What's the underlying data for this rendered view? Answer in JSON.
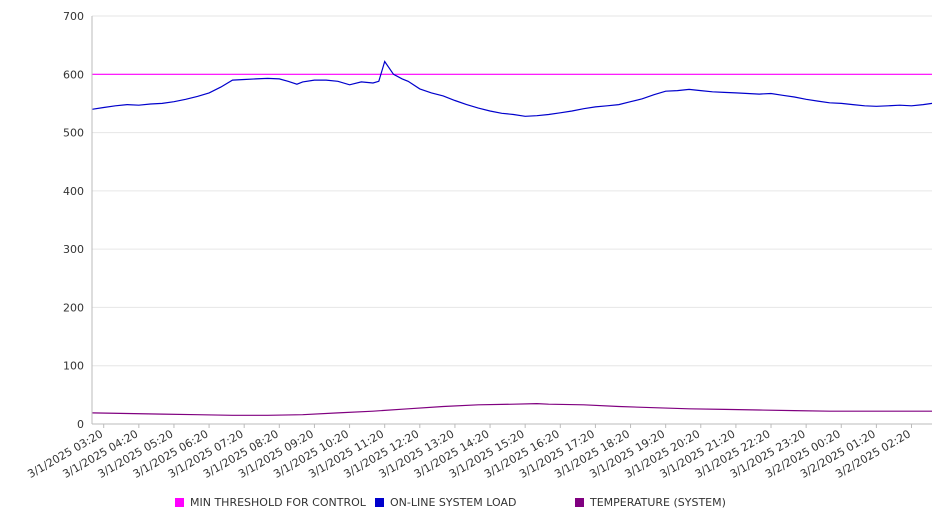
{
  "chart_data": {
    "type": "line",
    "title": "",
    "xlabel": "",
    "ylabel": "",
    "ylim": [
      0,
      700
    ],
    "yticks": [
      0,
      100,
      200,
      300,
      400,
      500,
      600,
      700
    ],
    "grid": true,
    "legend_position": "bottom",
    "x_start": "3/1/2025 03:00",
    "x_end": "3/2/2025 02:55",
    "x_tick_labels": [
      "3/1/2025 03:20",
      "3/1/2025 04:20",
      "3/1/2025 05:20",
      "3/1/2025 06:20",
      "3/1/2025 07:20",
      "3/1/2025 08:20",
      "3/1/2025 09:20",
      "3/1/2025 10:20",
      "3/1/2025 11:20",
      "3/1/2025 12:20",
      "3/1/2025 13:20",
      "3/1/2025 14:20",
      "3/1/2025 15:20",
      "3/1/2025 16:20",
      "3/1/2025 17:20",
      "3/1/2025 18:20",
      "3/1/2025 19:20",
      "3/1/2025 20:20",
      "3/1/2025 21:20",
      "3/1/2025 22:20",
      "3/1/2025 23:20",
      "3/2/2025 00:20",
      "3/2/2025 01:20",
      "3/2/2025 02:20"
    ],
    "series": [
      {
        "name": "MIN THRESHOLD FOR CONTROL",
        "color": "#ff00ff",
        "points": [
          [
            "3/1/2025 03:00",
            600
          ],
          [
            "3/2/2025 02:55",
            600
          ]
        ]
      },
      {
        "name": "ON-LINE SYSTEM LOAD",
        "color": "#0000cc",
        "points": [
          [
            "3/1/2025 03:00",
            540
          ],
          [
            "3/1/2025 03:20",
            543
          ],
          [
            "3/1/2025 03:40",
            546
          ],
          [
            "3/1/2025 04:00",
            548
          ],
          [
            "3/1/2025 04:20",
            547
          ],
          [
            "3/1/2025 04:40",
            549
          ],
          [
            "3/1/2025 05:00",
            550
          ],
          [
            "3/1/2025 05:20",
            553
          ],
          [
            "3/1/2025 05:40",
            557
          ],
          [
            "3/1/2025 06:00",
            562
          ],
          [
            "3/1/2025 06:20",
            568
          ],
          [
            "3/1/2025 06:40",
            578
          ],
          [
            "3/1/2025 07:00",
            590
          ],
          [
            "3/1/2025 07:20",
            591
          ],
          [
            "3/1/2025 07:40",
            592
          ],
          [
            "3/1/2025 08:00",
            593
          ],
          [
            "3/1/2025 08:20",
            592
          ],
          [
            "3/1/2025 08:35",
            588
          ],
          [
            "3/1/2025 08:50",
            583
          ],
          [
            "3/1/2025 09:00",
            587
          ],
          [
            "3/1/2025 09:20",
            590
          ],
          [
            "3/1/2025 09:40",
            590
          ],
          [
            "3/1/2025 10:00",
            588
          ],
          [
            "3/1/2025 10:20",
            582
          ],
          [
            "3/1/2025 10:40",
            587
          ],
          [
            "3/1/2025 11:00",
            585
          ],
          [
            "3/1/2025 11:10",
            588
          ],
          [
            "3/1/2025 11:20",
            622
          ],
          [
            "3/1/2025 11:35",
            600
          ],
          [
            "3/1/2025 11:50",
            592
          ],
          [
            "3/1/2025 12:00",
            588
          ],
          [
            "3/1/2025 12:20",
            575
          ],
          [
            "3/1/2025 12:40",
            568
          ],
          [
            "3/1/2025 13:00",
            563
          ],
          [
            "3/1/2025 13:20",
            555
          ],
          [
            "3/1/2025 13:40",
            548
          ],
          [
            "3/1/2025 14:00",
            542
          ],
          [
            "3/1/2025 14:20",
            537
          ],
          [
            "3/1/2025 14:40",
            533
          ],
          [
            "3/1/2025 15:00",
            531
          ],
          [
            "3/1/2025 15:20",
            528
          ],
          [
            "3/1/2025 15:40",
            529
          ],
          [
            "3/1/2025 16:00",
            531
          ],
          [
            "3/1/2025 16:20",
            534
          ],
          [
            "3/1/2025 16:40",
            537
          ],
          [
            "3/1/2025 17:00",
            541
          ],
          [
            "3/1/2025 17:20",
            544
          ],
          [
            "3/1/2025 17:40",
            546
          ],
          [
            "3/1/2025 18:00",
            548
          ],
          [
            "3/1/2025 18:20",
            553
          ],
          [
            "3/1/2025 18:40",
            558
          ],
          [
            "3/1/2025 19:00",
            565
          ],
          [
            "3/1/2025 19:20",
            571
          ],
          [
            "3/1/2025 19:40",
            572
          ],
          [
            "3/1/2025 20:00",
            574
          ],
          [
            "3/1/2025 20:20",
            572
          ],
          [
            "3/1/2025 20:40",
            570
          ],
          [
            "3/1/2025 21:00",
            569
          ],
          [
            "3/1/2025 21:20",
            568
          ],
          [
            "3/1/2025 21:40",
            567
          ],
          [
            "3/1/2025 22:00",
            566
          ],
          [
            "3/1/2025 22:20",
            567
          ],
          [
            "3/1/2025 22:40",
            564
          ],
          [
            "3/1/2025 23:00",
            561
          ],
          [
            "3/1/2025 23:20",
            557
          ],
          [
            "3/1/2025 23:40",
            554
          ],
          [
            "3/2/2025 00:00",
            551
          ],
          [
            "3/2/2025 00:20",
            550
          ],
          [
            "3/2/2025 00:40",
            548
          ],
          [
            "3/2/2025 01:00",
            546
          ],
          [
            "3/2/2025 01:20",
            545
          ],
          [
            "3/2/2025 01:40",
            546
          ],
          [
            "3/2/2025 02:00",
            547
          ],
          [
            "3/2/2025 02:20",
            546
          ],
          [
            "3/2/2025 02:40",
            548
          ],
          [
            "3/2/2025 02:55",
            550
          ]
        ]
      },
      {
        "name": "TEMPERATURE (SYSTEM)",
        "color": "#800080",
        "points": [
          [
            "3/1/2025 03:00",
            19
          ],
          [
            "3/1/2025 04:00",
            18
          ],
          [
            "3/1/2025 05:00",
            17
          ],
          [
            "3/1/2025 06:00",
            16
          ],
          [
            "3/1/2025 07:00",
            15
          ],
          [
            "3/1/2025 08:00",
            15
          ],
          [
            "3/1/2025 09:00",
            16
          ],
          [
            "3/1/2025 10:00",
            19
          ],
          [
            "3/1/2025 11:00",
            22
          ],
          [
            "3/1/2025 12:00",
            26
          ],
          [
            "3/1/2025 13:00",
            30
          ],
          [
            "3/1/2025 14:00",
            33
          ],
          [
            "3/1/2025 15:00",
            34
          ],
          [
            "3/1/2025 15:40",
            35
          ],
          [
            "3/1/2025 16:00",
            34
          ],
          [
            "3/1/2025 17:00",
            33
          ],
          [
            "3/1/2025 18:00",
            30
          ],
          [
            "3/1/2025 19:00",
            28
          ],
          [
            "3/1/2025 20:00",
            26
          ],
          [
            "3/1/2025 21:00",
            25
          ],
          [
            "3/1/2025 22:00",
            24
          ],
          [
            "3/1/2025 23:00",
            23
          ],
          [
            "3/2/2025 00:00",
            22
          ],
          [
            "3/2/2025 01:00",
            22
          ],
          [
            "3/2/2025 02:00",
            22
          ],
          [
            "3/2/2025 02:55",
            22
          ]
        ]
      }
    ]
  }
}
